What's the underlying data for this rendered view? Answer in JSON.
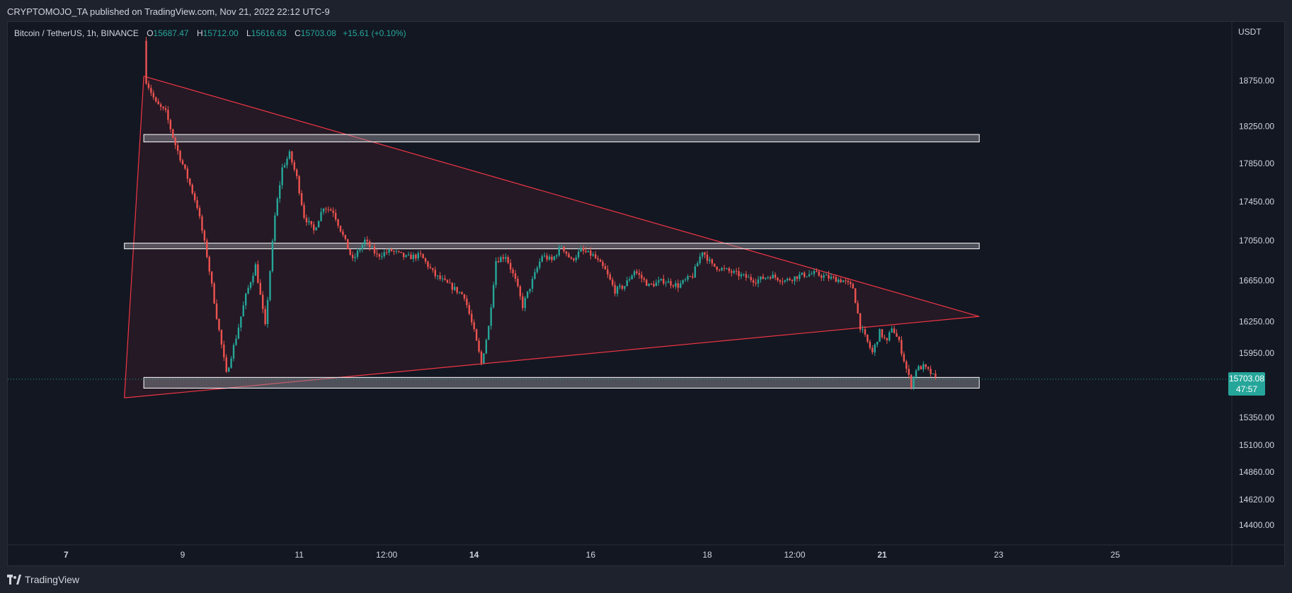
{
  "header": {
    "publish_line": "CRYPTOMOJO_TA published on TradingView.com, Nov 21, 2022 22:12 UTC-9"
  },
  "legend": {
    "symbol": "Bitcoin / TetherUS, 1h, BINANCE",
    "open_label": "O",
    "open": "15687.47",
    "high_label": "H",
    "high": "15712.00",
    "low_label": "L",
    "low": "15616.63",
    "close_label": "C",
    "close": "15703.08",
    "change": "+15.61 (+0.10%)"
  },
  "price_axis": {
    "unit": "USDT",
    "current_price": "15703.08",
    "countdown": "47:57"
  },
  "footer": {
    "brand": "TradingView"
  },
  "colors": {
    "background": "#131722",
    "up": "#26a69a",
    "down": "#ef5350",
    "pattern": "#f23645"
  },
  "chart_data": {
    "type": "candlestick",
    "title": "Bitcoin / TetherUS, 1h, BINANCE",
    "y_scale": "log",
    "y_ticks": [
      18750,
      18250,
      17850,
      17450,
      17050,
      16650,
      16250,
      15950,
      15350,
      15100,
      14860,
      14620,
      14400
    ],
    "y_tick_labels": [
      "18750.00",
      "18250.00",
      "17850.00",
      "17450.00",
      "17050.00",
      "16650.00",
      "16250.00",
      "15950.00",
      "15350.00",
      "15100.00",
      "14860.00",
      "14620.00",
      "14400.00"
    ],
    "x_ticks": [
      "2022-11-07",
      "2022-11-09",
      "2022-11-11",
      "2022-11-12 12:00",
      "2022-11-14",
      "2022-11-16",
      "2022-11-18",
      "2022-11-19 12:00",
      "2022-11-21",
      "2022-11-23",
      "2022-11-25"
    ],
    "x_tick_labels": [
      "7",
      "9",
      "11",
      "12:00",
      "14",
      "16",
      "18",
      "12:00",
      "21",
      "23",
      "25"
    ],
    "x_range": [
      "2022-11-06",
      "2022-11-27"
    ],
    "price_path": [
      [
        "2022-11-08 08:00",
        19200
      ],
      [
        "2022-11-08 09:00",
        18750
      ],
      [
        "2022-11-08 13:00",
        18500
      ],
      [
        "2022-11-08 17:00",
        18400
      ],
      [
        "2022-11-08 21:00",
        18050
      ],
      [
        "2022-11-09 02:00",
        17700
      ],
      [
        "2022-11-09 06:00",
        17400
      ],
      [
        "2022-11-09 10:00",
        16900
      ],
      [
        "2022-11-09 14:00",
        16300
      ],
      [
        "2022-11-09 18:00",
        15750
      ],
      [
        "2022-11-09 22:00",
        16100
      ],
      [
        "2022-11-10 02:00",
        16500
      ],
      [
        "2022-11-10 06:00",
        16800
      ],
      [
        "2022-11-10 10:00",
        16200
      ],
      [
        "2022-11-10 14:00",
        17300
      ],
      [
        "2022-11-10 17:00",
        17800
      ],
      [
        "2022-11-10 20:00",
        17950
      ],
      [
        "2022-11-10 23:00",
        17700
      ],
      [
        "2022-11-11 02:00",
        17300
      ],
      [
        "2022-11-11 06:00",
        17150
      ],
      [
        "2022-11-11 10:00",
        17400
      ],
      [
        "2022-11-11 14:00",
        17350
      ],
      [
        "2022-11-11 18:00",
        17100
      ],
      [
        "2022-11-11 22:00",
        16850
      ],
      [
        "2022-11-12 03:00",
        17050
      ],
      [
        "2022-11-12 08:00",
        16900
      ],
      [
        "2022-11-12 14:00",
        16950
      ],
      [
        "2022-11-12 20:00",
        16880
      ],
      [
        "2022-11-13 02:00",
        16900
      ],
      [
        "2022-11-13 08:00",
        16700
      ],
      [
        "2022-11-13 14:00",
        16600
      ],
      [
        "2022-11-13 20:00",
        16500
      ],
      [
        "2022-11-14 00:00",
        16150
      ],
      [
        "2022-11-14 03:00",
        15850
      ],
      [
        "2022-11-14 06:00",
        16200
      ],
      [
        "2022-11-14 09:00",
        16850
      ],
      [
        "2022-11-14 13:00",
        16900
      ],
      [
        "2022-11-14 17:00",
        16650
      ],
      [
        "2022-11-14 20:00",
        16400
      ],
      [
        "2022-11-15 00:00",
        16650
      ],
      [
        "2022-11-15 04:00",
        16900
      ],
      [
        "2022-11-15 08:00",
        16850
      ],
      [
        "2022-11-15 12:00",
        17000
      ],
      [
        "2022-11-15 16:00",
        16850
      ],
      [
        "2022-11-15 20:00",
        16950
      ],
      [
        "2022-11-16 01:00",
        16900
      ],
      [
        "2022-11-16 06:00",
        16750
      ],
      [
        "2022-11-16 10:00",
        16550
      ],
      [
        "2022-11-16 14:00",
        16600
      ],
      [
        "2022-11-16 18:00",
        16750
      ],
      [
        "2022-11-17 00:00",
        16600
      ],
      [
        "2022-11-17 06:00",
        16650
      ],
      [
        "2022-11-17 12:00",
        16600
      ],
      [
        "2022-11-17 18:00",
        16700
      ],
      [
        "2022-11-17 22:00",
        16950
      ],
      [
        "2022-11-18 02:00",
        16800
      ],
      [
        "2022-11-18 08:00",
        16750
      ],
      [
        "2022-11-18 14:00",
        16700
      ],
      [
        "2022-11-18 20:00",
        16650
      ],
      [
        "2022-11-19 02:00",
        16700
      ],
      [
        "2022-11-19 08:00",
        16650
      ],
      [
        "2022-11-19 14:00",
        16700
      ],
      [
        "2022-11-19 20:00",
        16720
      ],
      [
        "2022-11-20 02:00",
        16680
      ],
      [
        "2022-11-20 08:00",
        16650
      ],
      [
        "2022-11-20 12:00",
        16580
      ],
      [
        "2022-11-20 15:00",
        16200
      ],
      [
        "2022-11-20 18:00",
        16050
      ],
      [
        "2022-11-20 20:00",
        15950
      ],
      [
        "2022-11-20 23:00",
        16150
      ],
      [
        "2022-11-21 02:00",
        16050
      ],
      [
        "2022-11-21 04:00",
        16200
      ],
      [
        "2022-11-21 07:00",
        16050
      ],
      [
        "2022-11-21 10:00",
        15800
      ],
      [
        "2022-11-21 12:00",
        15650
      ],
      [
        "2022-11-21 14:00",
        15800
      ],
      [
        "2022-11-21 17:00",
        15820
      ],
      [
        "2022-11-21 20:00",
        15760
      ],
      [
        "2022-11-21 22:00",
        15703
      ]
    ],
    "support_resistance_zones": [
      {
        "from": "2022-11-08 08:00",
        "to": "2022-11-22 16:00",
        "price_low": 18080,
        "price_high": 18160
      },
      {
        "from": "2022-11-08 00:00",
        "to": "2022-11-22 16:00",
        "price_low": 16975,
        "price_high": 17025
      },
      {
        "from": "2022-11-08 08:00",
        "to": "2022-11-22 16:00",
        "price_low": 15620,
        "price_high": 15720
      }
    ],
    "triangle": {
      "upper_line": [
        [
          "2022-11-08 08:00",
          18800
        ],
        [
          "2022-11-22 16:00",
          16300
        ]
      ],
      "lower_line": [
        [
          "2022-11-08 00:00",
          15530
        ],
        [
          "2022-11-22 16:00",
          16300
        ]
      ],
      "left_edge": [
        [
          "2022-11-08 08:00",
          18800
        ],
        [
          "2022-11-08 00:00",
          15530
        ]
      ]
    },
    "last_price": 15703.08
  }
}
